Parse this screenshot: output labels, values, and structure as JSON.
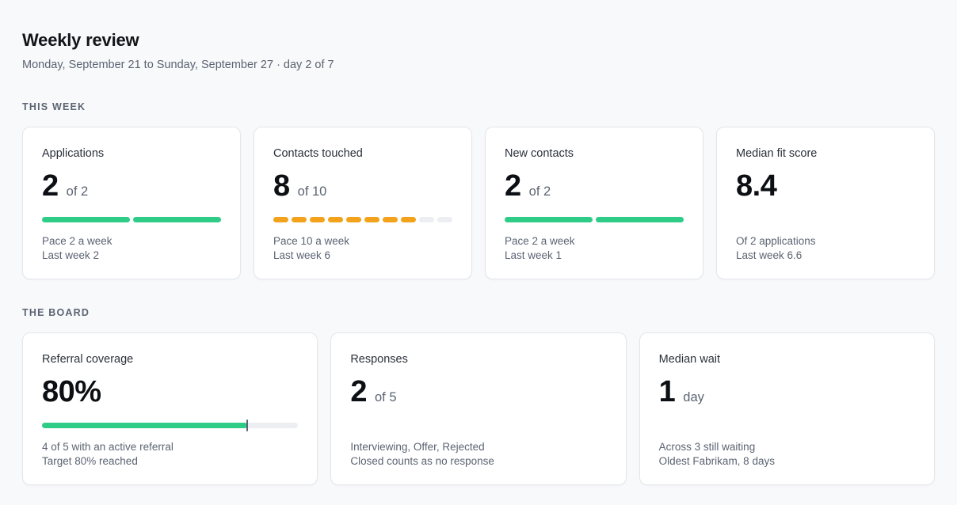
{
  "header": {
    "title": "Weekly review",
    "subtitle": "Monday, September 21 to Sunday, September 27 · day 2 of 7"
  },
  "this_week": {
    "section_label": "THIS WEEK",
    "cards": [
      {
        "label": "Applications",
        "value": "2",
        "unit": "of 2",
        "progress": {
          "done": 2,
          "total": 2,
          "color": "#2ecc87"
        },
        "line1": "Pace 2 a week",
        "line2": "Last week 2"
      },
      {
        "label": "Contacts touched",
        "value": "8",
        "unit": "of 10",
        "progress": {
          "done": 8,
          "total": 10,
          "color": "#f2a21b"
        },
        "line1": "Pace 10 a week",
        "line2": "Last week 6"
      },
      {
        "label": "New contacts",
        "value": "2",
        "unit": "of 2",
        "progress": {
          "done": 2,
          "total": 2,
          "color": "#2ecc87"
        },
        "line1": "Pace 2 a week",
        "line2": "Last week 1"
      },
      {
        "label": "Median fit score",
        "value": "8.4",
        "line1": "Of 2 applications",
        "line2": "Last week 6.6"
      }
    ]
  },
  "board": {
    "section_label": "THE BOARD",
    "referral": {
      "label": "Referral coverage",
      "value": "80%",
      "progress_fraction": 0.8,
      "target_fraction": 0.8,
      "line1": "4 of 5 with an active referral",
      "line2": "Target 80% reached"
    },
    "responses": {
      "label": "Responses",
      "value": "2",
      "unit": "of 5",
      "line1": "Interviewing, Offer, Rejected",
      "line2": "Closed counts as no response"
    },
    "wait": {
      "label": "Median wait",
      "value": "1",
      "unit": "day",
      "line1": "Across 3 still waiting",
      "line2": "Oldest Fabrikam, 8 days"
    }
  },
  "colors": {
    "green": "#2ecc87",
    "amber": "#f2a21b",
    "track": "#edeef1"
  }
}
